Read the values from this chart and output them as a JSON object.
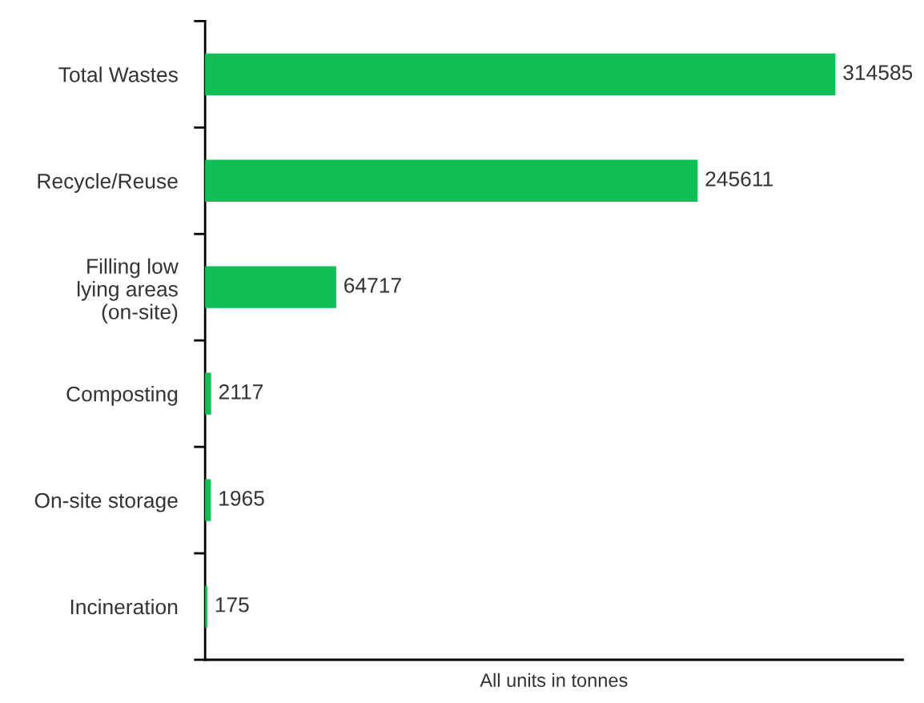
{
  "chart_data": {
    "type": "bar",
    "orientation": "horizontal",
    "xlabel": "All units in tonnes",
    "categories": [
      "Total Wastes",
      "Recycle/Reuse",
      "Filling low\nlying areas\n(on-site)",
      "Composting",
      "On-site storage",
      "Incineration"
    ],
    "values": [
      314585,
      245611,
      64717,
      2117,
      1965,
      175
    ],
    "color": "#12bf56",
    "data_labels": true,
    "tick_labels": "y"
  }
}
